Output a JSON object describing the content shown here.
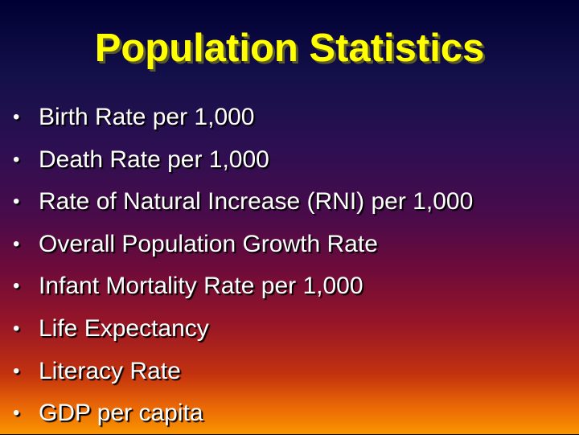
{
  "slide": {
    "title": "Population Statistics",
    "bullet_glyph": "•",
    "bullets": [
      "Birth Rate per 1,000",
      "Death Rate per 1,000",
      "Rate of Natural Increase (RNI) per 1,000",
      "Overall Population Growth Rate",
      "Infant Mortality Rate per 1,000",
      "Life Expectancy",
      "Literacy Rate",
      "GDP per capita"
    ]
  },
  "colors": {
    "title": "#ffff00",
    "text": "#ffffff",
    "background_top": "#000033",
    "background_bottom": "#f99500"
  }
}
